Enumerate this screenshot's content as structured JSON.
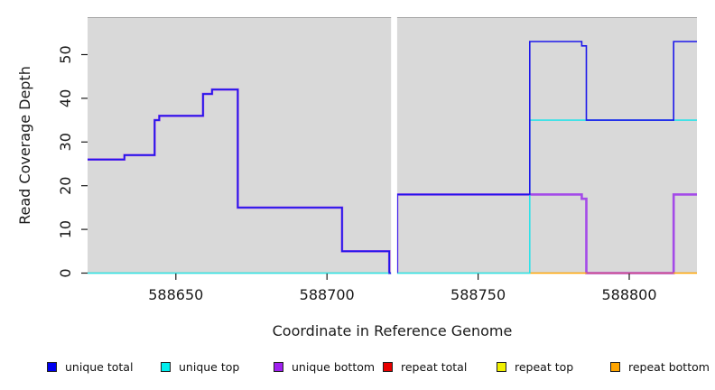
{
  "figure": {
    "background": "#ffffff",
    "panel_color": "#d9d9d9",
    "panel_top_edge_color": "#a3a3a3",
    "axis_color": "#1a1a1a"
  },
  "axes": {
    "x_label": "Coordinate in Reference Genome",
    "y_label": "Read Coverage Depth"
  },
  "chart_data": {
    "type": "line",
    "subtype": "step-coverage",
    "title": "",
    "xlabel": "Coordinate in Reference Genome",
    "ylabel": "Read Coverage Depth",
    "xlim": [
      588620.8,
      588822.4
    ],
    "ylim": [
      0,
      58.4
    ],
    "xticks": [
      588650,
      588700,
      588750,
      588800
    ],
    "xtick_labels": [
      "588650",
      "588700",
      "588750",
      "588800"
    ],
    "yticks": [
      0,
      10,
      20,
      30,
      40,
      50
    ],
    "ytick_labels": [
      "0",
      "10",
      "20",
      "30",
      "40",
      "50"
    ],
    "grid": false,
    "legend_position": "bottom",
    "gap_region": {
      "from": 588721.2,
      "to": 588723.2,
      "color": "#ffffff"
    },
    "series": [
      {
        "name": "unique total",
        "color": "#1d18ea",
        "width": 1.6,
        "z": 5,
        "draw": true,
        "segments": [
          [
            [
              588620.8,
              26
            ],
            [
              588633,
              26
            ],
            [
              588633,
              27
            ],
            [
              588643,
              27
            ],
            [
              588643,
              35
            ],
            [
              588644.5,
              35
            ],
            [
              588644.5,
              36
            ],
            [
              588659,
              36
            ],
            [
              588659,
              41
            ],
            [
              588662,
              41
            ],
            [
              588662,
              42
            ],
            [
              588670.5,
              42
            ],
            [
              588670.5,
              15
            ],
            [
              588705,
              15
            ],
            [
              588705,
              5
            ],
            [
              588720.6,
              5
            ],
            [
              588720.6,
              0
            ],
            [
              588721.2,
              0
            ]
          ],
          [
            [
              588723.2,
              0
            ],
            [
              588723.2,
              18
            ],
            [
              588767.1,
              18
            ],
            [
              588767.1,
              53
            ],
            [
              588784.3,
              53
            ],
            [
              588784.3,
              52
            ],
            [
              588785.8,
              52
            ],
            [
              588785.8,
              35
            ],
            [
              588814.7,
              35
            ],
            [
              588814.7,
              53
            ],
            [
              588822.4,
              53
            ]
          ]
        ]
      },
      {
        "name": "unique top",
        "color": "#2ee2e8",
        "width": 1.6,
        "z": 4,
        "draw": true,
        "segments": [
          [
            [
              588620.8,
              0
            ],
            [
              588721.2,
              0
            ]
          ],
          [
            [
              588723.2,
              0
            ],
            [
              588767.1,
              0
            ],
            [
              588767.1,
              35
            ],
            [
              588822.4,
              35
            ]
          ]
        ]
      },
      {
        "name": "unique bottom",
        "color": "#a44ae8",
        "width": 2.6,
        "z": 2,
        "draw": true,
        "segments": [
          [
            [
              588620.8,
              26
            ],
            [
              588633,
              26
            ],
            [
              588633,
              27
            ],
            [
              588643,
              27
            ],
            [
              588643,
              35
            ],
            [
              588644.5,
              35
            ],
            [
              588644.5,
              36
            ],
            [
              588659,
              36
            ],
            [
              588659,
              41
            ],
            [
              588662,
              41
            ],
            [
              588662,
              42
            ],
            [
              588670.5,
              42
            ],
            [
              588670.5,
              15
            ],
            [
              588705,
              15
            ],
            [
              588705,
              5
            ],
            [
              588720.6,
              5
            ],
            [
              588720.6,
              0
            ],
            [
              588721.2,
              0
            ]
          ],
          [
            [
              588723.2,
              0
            ],
            [
              588723.2,
              18
            ],
            [
              588784.3,
              18
            ],
            [
              588784.3,
              17
            ],
            [
              588785.8,
              17
            ],
            [
              588785.8,
              0
            ],
            [
              588814.7,
              0
            ],
            [
              588814.7,
              18
            ],
            [
              588822.4,
              18
            ]
          ]
        ]
      },
      {
        "name": "repeat total",
        "color": "#e80000",
        "width": 1.6,
        "z": 1,
        "draw": false,
        "segments": [
          [
            [
              588620.8,
              0
            ],
            [
              588721.2,
              0
            ]
          ],
          [
            [
              588723.2,
              0
            ],
            [
              588822.4,
              0
            ]
          ]
        ]
      },
      {
        "name": "repeat top",
        "color": "#f0f000",
        "width": 1.6,
        "z": 1,
        "draw": false,
        "segments": [
          [
            [
              588620.8,
              0
            ],
            [
              588721.2,
              0
            ]
          ],
          [
            [
              588723.2,
              0
            ],
            [
              588822.4,
              0
            ]
          ]
        ]
      },
      {
        "name": "repeat bottom",
        "color": "#ffa500",
        "width": 1.6,
        "z": 1,
        "draw": false,
        "segments": [
          [
            [
              588620.8,
              0
            ],
            [
              588721.2,
              0
            ]
          ],
          [
            [
              588723.2,
              0
            ],
            [
              588822.4,
              0
            ]
          ]
        ]
      }
    ],
    "baseline_blend_segments": [
      {
        "from": 588620.8,
        "to": 588721.2,
        "color": "#8fd795"
      },
      {
        "from": 588723.2,
        "to": 588767.1,
        "color": "#8fd795"
      },
      {
        "from": 588767.1,
        "to": 588785.8,
        "color": "#ffa500"
      },
      {
        "from": 588785.8,
        "to": 588814.7,
        "color": "#d6517e"
      },
      {
        "from": 588814.7,
        "to": 588822.4,
        "color": "#ffa500"
      }
    ]
  },
  "legend": {
    "items": [
      {
        "label": "unique total",
        "color": "#0000f0"
      },
      {
        "label": "unique top",
        "color": "#00eeee"
      },
      {
        "label": "unique bottom",
        "color": "#a020f0"
      },
      {
        "label": "repeat total",
        "color": "#e80000"
      },
      {
        "label": "repeat top",
        "color": "#f0f000"
      },
      {
        "label": "repeat bottom",
        "color": "#ffa500"
      }
    ],
    "item_lefts": [
      52,
      178,
      303,
      424,
      550,
      676
    ]
  }
}
